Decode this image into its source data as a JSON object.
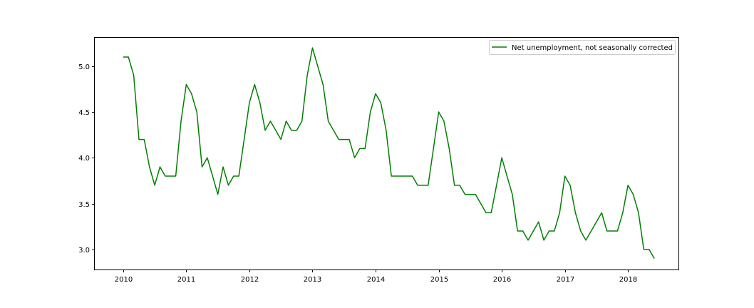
{
  "chart_data": {
    "type": "line",
    "title": "",
    "xlabel": "",
    "ylabel": "",
    "xlim": [
      2009.55,
      2018.8
    ],
    "ylim": [
      2.78,
      5.31
    ],
    "xticks": [
      2010,
      2011,
      2012,
      2013,
      2014,
      2015,
      2016,
      2017,
      2018
    ],
    "yticks": [
      3.0,
      3.5,
      4.0,
      4.5,
      5.0
    ],
    "ytick_labels": [
      "3.0",
      "3.5",
      "4.0",
      "4.5",
      "5.0"
    ],
    "grid": false,
    "legend_position": "upper right",
    "series": [
      {
        "name": "Net unemployment, not seasonally corrected",
        "color": "#008000",
        "x": [
          2010.0,
          2010.083,
          2010.167,
          2010.25,
          2010.333,
          2010.417,
          2010.5,
          2010.583,
          2010.667,
          2010.75,
          2010.833,
          2010.917,
          2011.0,
          2011.083,
          2011.167,
          2011.25,
          2011.333,
          2011.417,
          2011.5,
          2011.583,
          2011.667,
          2011.75,
          2011.833,
          2011.917,
          2012.0,
          2012.083,
          2012.167,
          2012.25,
          2012.333,
          2012.417,
          2012.5,
          2012.583,
          2012.667,
          2012.75,
          2012.833,
          2012.917,
          2013.0,
          2013.083,
          2013.167,
          2013.25,
          2013.333,
          2013.417,
          2013.5,
          2013.583,
          2013.667,
          2013.75,
          2013.833,
          2013.917,
          2014.0,
          2014.083,
          2014.167,
          2014.25,
          2014.333,
          2014.417,
          2014.5,
          2014.583,
          2014.667,
          2014.75,
          2014.833,
          2014.917,
          2015.0,
          2015.083,
          2015.167,
          2015.25,
          2015.333,
          2015.417,
          2015.5,
          2015.583,
          2015.667,
          2015.75,
          2015.833,
          2015.917,
          2016.0,
          2016.083,
          2016.167,
          2016.25,
          2016.333,
          2016.417,
          2016.5,
          2016.583,
          2016.667,
          2016.75,
          2016.833,
          2016.917,
          2017.0,
          2017.083,
          2017.167,
          2017.25,
          2017.333,
          2017.417,
          2017.5,
          2017.583,
          2017.667,
          2017.75,
          2017.833,
          2017.917,
          2018.0,
          2018.083,
          2018.167,
          2018.25,
          2018.333,
          2018.417
        ],
        "values": [
          5.1,
          5.1,
          4.9,
          4.2,
          4.2,
          3.9,
          3.7,
          3.9,
          3.8,
          3.8,
          3.8,
          4.4,
          4.8,
          4.7,
          4.5,
          3.9,
          4.0,
          3.8,
          3.6,
          3.9,
          3.7,
          3.8,
          3.8,
          4.2,
          4.6,
          4.8,
          4.6,
          4.3,
          4.4,
          4.3,
          4.2,
          4.4,
          4.3,
          4.3,
          4.4,
          4.9,
          5.2,
          5.0,
          4.8,
          4.4,
          4.3,
          4.2,
          4.2,
          4.2,
          4.0,
          4.1,
          4.1,
          4.5,
          4.7,
          4.6,
          4.3,
          3.8,
          3.8,
          3.8,
          3.8,
          3.8,
          3.7,
          3.7,
          3.7,
          4.1,
          4.5,
          4.4,
          4.1,
          3.7,
          3.7,
          3.6,
          3.6,
          3.6,
          3.5,
          3.4,
          3.4,
          3.7,
          4.0,
          3.8,
          3.6,
          3.2,
          3.2,
          3.1,
          3.2,
          3.3,
          3.1,
          3.2,
          3.2,
          3.4,
          3.8,
          3.7,
          3.4,
          3.2,
          3.1,
          3.2,
          3.3,
          3.4,
          3.2,
          3.2,
          3.2,
          3.4,
          3.7,
          3.6,
          3.4,
          3.0,
          3.0,
          2.9
        ]
      }
    ]
  }
}
